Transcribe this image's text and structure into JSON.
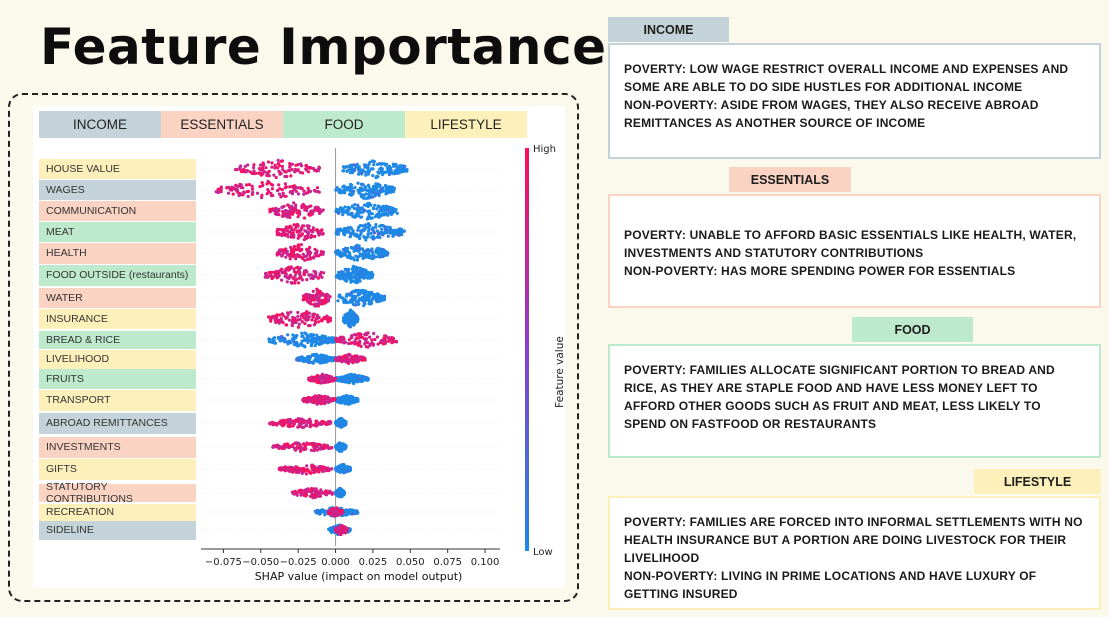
{
  "title": "Feature Importance",
  "colors": {
    "income": "#c3d3d9",
    "essentials": "#fad3c3",
    "food": "#bde9cc",
    "lifestyle": "#fdf0ba",
    "shap_low": "#1e88e5",
    "shap_high": "#ff0d57"
  },
  "categories": [
    {
      "key": "income",
      "label": "INCOME"
    },
    {
      "key": "essentials",
      "label": "ESSENTIALS"
    },
    {
      "key": "food",
      "label": "FOOD"
    },
    {
      "key": "lifestyle",
      "label": "LIFESTYLE"
    }
  ],
  "features": [
    {
      "label": "HOUSE VALUE",
      "group": "lifestyle"
    },
    {
      "label": "WAGES",
      "group": "income"
    },
    {
      "label": "COMMUNICATION",
      "group": "essentials"
    },
    {
      "label": "MEAT",
      "group": "food"
    },
    {
      "label": "HEALTH",
      "group": "essentials"
    },
    {
      "label": "FOOD OUTSIDE (restaurants)",
      "group": "food"
    },
    {
      "label": "WATER",
      "group": "essentials"
    },
    {
      "label": "INSURANCE",
      "group": "lifestyle"
    },
    {
      "label": "BREAD & RICE",
      "group": "food"
    },
    {
      "label": "LIVELIHOOD",
      "group": "lifestyle"
    },
    {
      "label": "FRUITS",
      "group": "food"
    },
    {
      "label": "TRANSPORT",
      "group": "lifestyle"
    },
    {
      "label": "ABROAD REMITTANCES",
      "group": "income"
    },
    {
      "label": "INVESTMENTS",
      "group": "essentials"
    },
    {
      "label": "GIFTS",
      "group": "lifestyle"
    },
    {
      "label": "STATUTORY CONTRIBUTIONS",
      "group": "essentials"
    },
    {
      "label": "RECREATION",
      "group": "lifestyle"
    },
    {
      "label": "SIDELINE",
      "group": "income"
    }
  ],
  "chart_data": {
    "type": "beeswarm",
    "xlabel": "SHAP value (impact on model output)",
    "xlim": [
      -0.09,
      0.11
    ],
    "xticks": [
      -0.075,
      -0.05,
      -0.025,
      0.0,
      0.025,
      0.05,
      0.075,
      0.1
    ],
    "xtick_labels": [
      "−0.075",
      "−0.050",
      "−0.025",
      "0.000",
      "0.025",
      "0.050",
      "0.075",
      "0.100"
    ],
    "colorbar": {
      "label": "Feature value",
      "high": "High",
      "low": "Low"
    },
    "series": [
      {
        "feature": "HOUSE VALUE",
        "low_range": [
          0.005,
          0.048
        ],
        "high_range": [
          -0.067,
          -0.01
        ]
      },
      {
        "feature": "WAGES",
        "low_range": [
          0.0,
          0.04
        ],
        "high_range": [
          -0.081,
          -0.01
        ]
      },
      {
        "feature": "COMMUNICATION",
        "low_range": [
          0.0,
          0.042
        ],
        "high_range": [
          -0.044,
          -0.008
        ]
      },
      {
        "feature": "MEAT",
        "low_range": [
          0.0,
          0.046
        ],
        "high_range": [
          -0.04,
          -0.008
        ]
      },
      {
        "feature": "HEALTH",
        "low_range": [
          0.0,
          0.035
        ],
        "high_range": [
          -0.039,
          -0.008
        ]
      },
      {
        "feature": "FOOD OUTSIDE (restaurants)",
        "low_range": [
          0.0,
          0.025
        ],
        "high_range": [
          -0.047,
          -0.008
        ]
      },
      {
        "feature": "WATER",
        "low_range": [
          0.0,
          0.033
        ],
        "high_range": [
          -0.022,
          -0.003
        ]
      },
      {
        "feature": "INSURANCE",
        "low_range": [
          0.005,
          0.015
        ],
        "high_range": [
          -0.045,
          -0.003
        ]
      },
      {
        "feature": "BREAD & RICE",
        "low_range": [
          -0.045,
          0.0
        ],
        "high_range": [
          0.0,
          0.041
        ]
      },
      {
        "feature": "LIVELIHOOD",
        "low_range": [
          -0.026,
          0.0
        ],
        "high_range": [
          0.0,
          0.02
        ]
      },
      {
        "feature": "FRUITS",
        "low_range": [
          0.0,
          0.022
        ],
        "high_range": [
          -0.018,
          0.0
        ]
      },
      {
        "feature": "TRANSPORT",
        "low_range": [
          0.0,
          0.015
        ],
        "high_range": [
          -0.022,
          0.0
        ]
      },
      {
        "feature": "ABROAD REMITTANCES",
        "low_range": [
          0.0,
          0.007
        ],
        "high_range": [
          -0.045,
          -0.002
        ]
      },
      {
        "feature": "INVESTMENTS",
        "low_range": [
          0.0,
          0.007
        ],
        "high_range": [
          -0.042,
          -0.002
        ]
      },
      {
        "feature": "GIFTS",
        "low_range": [
          0.0,
          0.01
        ],
        "high_range": [
          -0.038,
          -0.002
        ]
      },
      {
        "feature": "STATUTORY CONTRIBUTIONS",
        "low_range": [
          0.0,
          0.006
        ],
        "high_range": [
          -0.029,
          -0.002
        ]
      },
      {
        "feature": "RECREATION",
        "low_range": [
          -0.014,
          0.015
        ],
        "high_range": [
          -0.005,
          0.005
        ]
      },
      {
        "feature": "SIDELINE",
        "low_range": [
          -0.005,
          0.01
        ],
        "high_range": [
          0.0,
          0.008
        ]
      }
    ]
  },
  "panels": [
    {
      "key": "income",
      "label": "INCOME",
      "text": "POVERTY: LOW WAGE RESTRICT OVERALL INCOME AND EXPENSES AND SOME ARE ABLE TO DO SIDE HUSTLES FOR ADDITIONAL INCOME\nNON-POVERTY: ASIDE FROM WAGES, THEY ALSO RECEIVE ABROAD REMITTANCES AS ANOTHER SOURCE OF INCOME"
    },
    {
      "key": "essentials",
      "label": "ESSENTIALS",
      "text": "POVERTY: UNABLE TO AFFORD BASIC ESSENTIALS LIKE HEALTH, WATER, INVESTMENTS AND STATUTORY CONTRIBUTIONS\nNON-POVERTY: HAS MORE SPENDING POWER FOR ESSENTIALS"
    },
    {
      "key": "food",
      "label": "FOOD",
      "text": "POVERTY: FAMILIES ALLOCATE SIGNIFICANT PORTION TO BREAD AND RICE, AS THEY ARE STAPLE FOOD AND HAVE LESS MONEY LEFT TO AFFORD OTHER GOODS SUCH AS FRUIT AND MEAT, LESS LIKELY TO SPEND ON FASTFOOD OR RESTAURANTS"
    },
    {
      "key": "lifestyle",
      "label": "LIFESTYLE",
      "text": "POVERTY: FAMILIES ARE FORCED INTO INFORMAL SETTLEMENTS WITH NO HEALTH INSURANCE BUT A PORTION ARE DOING LIVESTOCK FOR THEIR LIVELIHOOD\nNON-POVERTY: LIVING IN PRIME LOCATIONS AND HAVE LUXURY OF GETTING INSURED"
    }
  ]
}
